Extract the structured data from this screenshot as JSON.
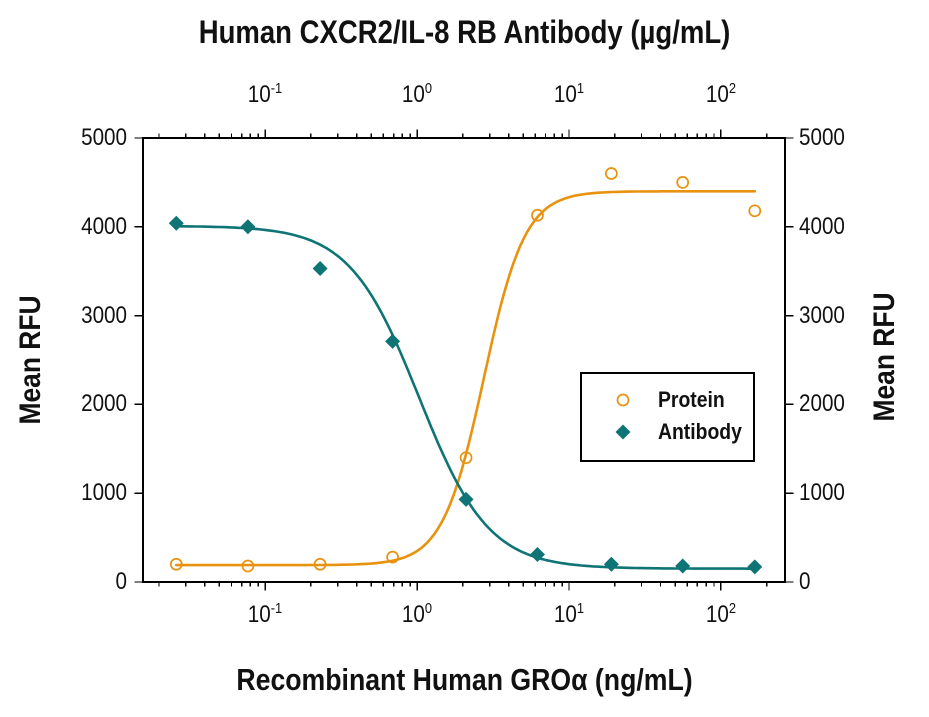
{
  "title": "Human CXCR2/IL-8 RB Antibody (µg/mL)",
  "axes": {
    "top": {
      "ticks": [
        {
          "base": "10",
          "exp": "-1"
        },
        {
          "base": "10",
          "exp": "0"
        },
        {
          "base": "10",
          "exp": "1"
        },
        {
          "base": "10",
          "exp": "2"
        }
      ]
    },
    "bottom": {
      "label": "Recombinant Human GROα (ng/mL)",
      "ticks": [
        {
          "base": "10",
          "exp": "-1"
        },
        {
          "base": "10",
          "exp": "0"
        },
        {
          "base": "10",
          "exp": "1"
        },
        {
          "base": "10",
          "exp": "2"
        }
      ]
    },
    "left": {
      "label": "Mean RFU",
      "ticks": [
        "0",
        "1000",
        "2000",
        "3000",
        "4000",
        "5000"
      ]
    },
    "right": {
      "label": "Mean RFU",
      "ticks": [
        "0",
        "1000",
        "2000",
        "3000",
        "4000",
        "5000"
      ]
    }
  },
  "legend": {
    "items": [
      {
        "label": "Protein",
        "marker": "open-circle",
        "color": "#E89210"
      },
      {
        "label": "Antibody",
        "marker": "filled-diamond",
        "color": "#0E7475"
      }
    ]
  },
  "colors": {
    "axis": "#000000",
    "text": "#111111",
    "background": "#ffffff"
  },
  "chart_data": {
    "type": "scatter",
    "x_scale": "log",
    "title": "Human CXCR2/IL-8 RB Antibody (µg/mL)",
    "xlabel": "Recombinant Human GROα (ng/mL)",
    "ylabel": "Mean RFU",
    "xlim": [
      0.0157,
      264
    ],
    "ylim": [
      0,
      5000
    ],
    "y_ticks": [
      0,
      1000,
      2000,
      3000,
      4000,
      5000
    ],
    "x_decades": [
      -1,
      0,
      1,
      2
    ],
    "grid": false,
    "legend_position": "middle-right",
    "x": [
      0.026,
      0.077,
      0.23,
      0.69,
      2.1,
      6.2,
      19,
      56,
      167
    ],
    "series": [
      {
        "name": "Protein",
        "marker": "open-circle",
        "color": "#E89210",
        "values": [
          200,
          180,
          200,
          280,
          1400,
          4130,
          4600,
          4500,
          4180
        ],
        "fit": {
          "min": 190,
          "max": 4400,
          "x50": 2.75,
          "hill": 3.2,
          "direction": "increasing"
        }
      },
      {
        "name": "Antibody",
        "marker": "filled-diamond",
        "color": "#0E7475",
        "values": [
          4040,
          4000,
          3530,
          2710,
          930,
          310,
          200,
          180,
          170
        ],
        "fit": {
          "min": 150,
          "max": 4010,
          "x50": 1.03,
          "hill": 1.9,
          "direction": "decreasing"
        }
      }
    ]
  }
}
